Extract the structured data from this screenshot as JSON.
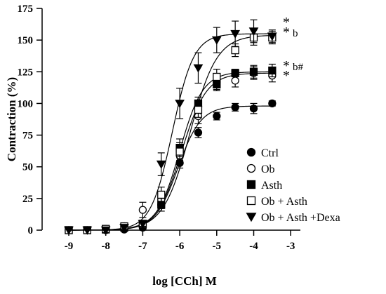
{
  "chart_data": {
    "type": "line",
    "xlabel": "log [CCh] M",
    "ylabel": "Contraction (%)",
    "xlim": [
      -9,
      -3
    ],
    "ylim": [
      0,
      175
    ],
    "xticks": [
      -9,
      -8,
      -7,
      -6,
      -5,
      -4,
      -3
    ],
    "xtick_labels": [
      "-9",
      "-8",
      "-7",
      "-6",
      "-5",
      "-4",
      "-3"
    ],
    "yticks": [
      0,
      25,
      50,
      75,
      100,
      125,
      150,
      175
    ],
    "ytick_labels": [
      "0",
      "25",
      "50",
      "75",
      "100",
      "125",
      "150",
      "175"
    ],
    "grid": false,
    "legend_position": "bottom-right",
    "x": [
      -9,
      -8.5,
      -8,
      -7.5,
      -7,
      -6.5,
      -6,
      -5.5,
      -5,
      -4.5,
      -4,
      -3.5
    ],
    "series": [
      {
        "name": "Ctrl",
        "marker": "circle-filled",
        "values": [
          0,
          0,
          0,
          0.5,
          2,
          20,
          53,
          77,
          90,
          97,
          96,
          100
        ],
        "errors": [
          0,
          0,
          0,
          1,
          2,
          3,
          4,
          4,
          3,
          3,
          4,
          2
        ],
        "fit": {
          "bottom": 0,
          "top": 98,
          "logEC50": -6.05,
          "hill": 1.4
        },
        "annotation": ""
      },
      {
        "name": "Ob",
        "marker": "circle-open",
        "values": [
          0,
          0,
          1,
          3,
          16,
          24,
          59,
          90,
          117,
          118,
          124,
          122
        ],
        "errors": [
          0,
          0,
          1,
          2,
          6,
          5,
          6,
          6,
          6,
          5,
          5,
          5
        ],
        "fit": {
          "bottom": 0,
          "top": 124,
          "logEC50": -5.95,
          "hill": 1.3
        },
        "annotation": "*"
      },
      {
        "name": "Asth",
        "marker": "square-filled",
        "values": [
          0,
          0,
          0.5,
          2,
          5,
          20,
          65,
          100,
          115,
          124,
          125,
          126
        ],
        "errors": [
          0,
          0,
          1,
          1,
          2,
          5,
          7,
          5,
          5,
          3,
          5,
          5
        ],
        "fit": {
          "bottom": 0,
          "top": 125,
          "logEC50": -6.0,
          "hill": 1.4
        },
        "annotation": "* b#"
      },
      {
        "name": "Ob + Asth",
        "marker": "square-open",
        "values": [
          0,
          0,
          1,
          3,
          5,
          28,
          62,
          95,
          121,
          142,
          152,
          152
        ],
        "errors": [
          0,
          0,
          1,
          2,
          2,
          6,
          7,
          6,
          6,
          5,
          6,
          5
        ],
        "fit": {
          "bottom": 0,
          "top": 154,
          "logEC50": -5.72,
          "hill": 1.2
        },
        "annotation": "* b"
      },
      {
        "name": "Ob + Asth +Dexa",
        "marker": "triangle-down-filled",
        "values": [
          0,
          0,
          0,
          2,
          5,
          52,
          100,
          128,
          150,
          155,
          157,
          153
        ],
        "errors": [
          0,
          0,
          0,
          1,
          2,
          9,
          12,
          12,
          10,
          10,
          9,
          5
        ],
        "fit": {
          "bottom": 0,
          "top": 155,
          "logEC50": -6.2,
          "hill": 1.5
        },
        "annotation": "*"
      }
    ]
  }
}
